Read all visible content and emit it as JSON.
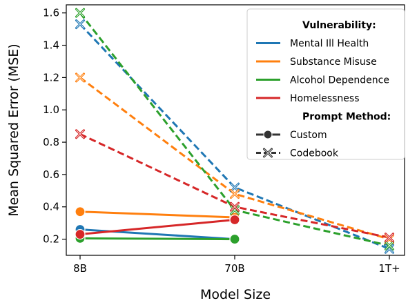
{
  "chart_data": {
    "type": "line",
    "title": "",
    "xlabel": "Model Size",
    "ylabel": "Mean Squared Error (MSE)",
    "categories": [
      "8B",
      "70B",
      "1T+"
    ],
    "ylim": [
      0.1,
      1.65
    ],
    "yticks": [
      "0.2",
      "0.4",
      "0.6",
      "0.8",
      "1.0",
      "1.2",
      "1.4",
      "1.6"
    ],
    "grid": false,
    "legend": {
      "placement": "top-right",
      "vulnerability_title": "Vulnerability:",
      "method_title": "Prompt Method:",
      "methods": [
        {
          "name": "Custom",
          "dash": "solid",
          "marker": "circle"
        },
        {
          "name": "Codebook",
          "dash": "dashed",
          "marker": "x"
        }
      ]
    },
    "series": [
      {
        "name": "Mental Ill Health",
        "color": "#1f77b4",
        "custom": [
          0.26,
          0.2,
          null
        ],
        "codebook": [
          1.53,
          0.52,
          0.14
        ]
      },
      {
        "name": "Substance Misuse",
        "color": "#ff7f0e",
        "custom": [
          0.37,
          0.335,
          null
        ],
        "codebook": [
          1.2,
          0.48,
          0.2
        ]
      },
      {
        "name": "Alcohol Dependence",
        "color": "#2ca02c",
        "custom": [
          0.205,
          0.2,
          null
        ],
        "codebook": [
          1.6,
          0.38,
          0.16
        ]
      },
      {
        "name": "Homelessness",
        "color": "#d62728",
        "custom": [
          0.23,
          0.32,
          null
        ],
        "codebook": [
          0.85,
          0.4,
          0.21
        ]
      }
    ]
  }
}
